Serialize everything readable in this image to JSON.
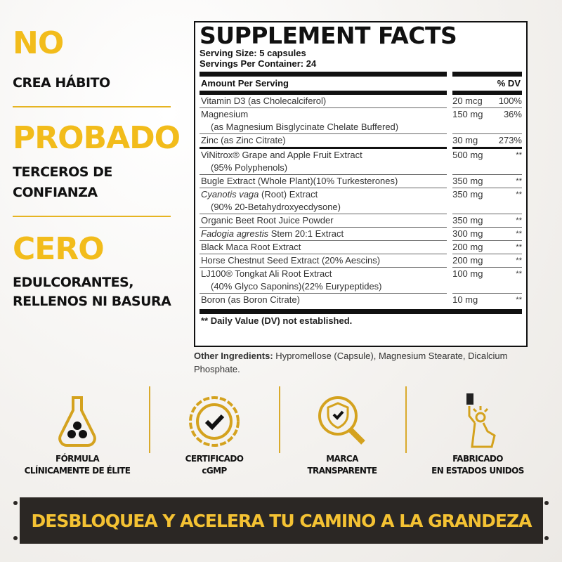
{
  "claims": [
    {
      "head": "NO",
      "lines": [
        "CREA HÁBITO"
      ]
    },
    {
      "head": "PROBADO",
      "lines": [
        "TERCEROS DE",
        "CONFIANZA"
      ]
    },
    {
      "head": "CERO",
      "lines": [
        "EDULCORANTES,",
        "RELLENOS NI BASURA"
      ]
    }
  ],
  "facts": {
    "title": "SUPPLEMENT FACTS",
    "serving_size": "Serving Size: 5 capsules",
    "servings_per_container": "Servings Per Container: 24",
    "amount_header": "Amount Per Serving",
    "dv_header": "% DV",
    "rows": [
      {
        "name": "Vitamin D3 (as Cholecalciferol)",
        "amount": "20 mcg",
        "dv": "100%"
      },
      {
        "name": "Magnesium",
        "name2": "(as Magnesium Bisglycinate Chelate Buffered)",
        "amount": "150 mg",
        "dv": "36%"
      },
      {
        "name": "Zinc (as Zinc Citrate)",
        "amount": "30 mg",
        "dv": "273%"
      },
      {
        "name": "ViNitrox® Grape and Apple Fruit Extract",
        "name2": "(95% Polyphenols)",
        "amount": "500 mg",
        "dv": "**"
      },
      {
        "name": "Bugle Extract (Whole Plant)(10% Turkesterones)",
        "amount": "350 mg",
        "dv": "**"
      },
      {
        "name": "Cyanotis vaga (Root) Extract",
        "name2": "(90% 20-Betahydroxyecdysone)",
        "amount": "350 mg",
        "dv": "**"
      },
      {
        "name": "Organic Beet Root Juice Powder",
        "amount": "350 mg",
        "dv": "**"
      },
      {
        "name": "Fadogia agrestis Stem 20:1 Extract",
        "amount": "300 mg",
        "dv": "**"
      },
      {
        "name": "Black Maca Root Extract",
        "amount": "200 mg",
        "dv": "**"
      },
      {
        "name": "Horse Chestnut Seed Extract (20% Aescins)",
        "amount": "200 mg",
        "dv": "**"
      },
      {
        "name": "LJ100® Tongkat Ali Root Extract",
        "name2": "(40% Glyco Saponins)(22% Eurypeptides)",
        "amount": "100 mg",
        "dv": "**"
      },
      {
        "name": "Boron (as Boron Citrate)",
        "amount": "10 mg",
        "dv": "**"
      }
    ],
    "footnote": "** Daily Value (DV) not established.",
    "other_label": "Other Ingredients:",
    "other_text": " Hypromellose (Capsule), Magnesium Stearate, Dicalcium Phosphate."
  },
  "badges": [
    {
      "icon": "flask-icon",
      "l1": "FÓRMULA",
      "l2": "CLÍNICAMENTE DE ÉLITE"
    },
    {
      "icon": "certified-seal-icon",
      "l1": "CERTIFICADO",
      "l2": "cGMP"
    },
    {
      "icon": "magnifier-shield-icon",
      "l1": "MARCA",
      "l2": "TRANSPARENTE"
    },
    {
      "icon": "statue-of-liberty-icon",
      "l1": "FABRICADO",
      "l2": "EN ESTADOS UNIDOS"
    }
  ],
  "banner": "DESBLOQUEA Y ACELERA TU CAMINO A LA GRANDEZA",
  "colors": {
    "gold": "#f2bc1b",
    "banner_bg": "#2b2724"
  }
}
